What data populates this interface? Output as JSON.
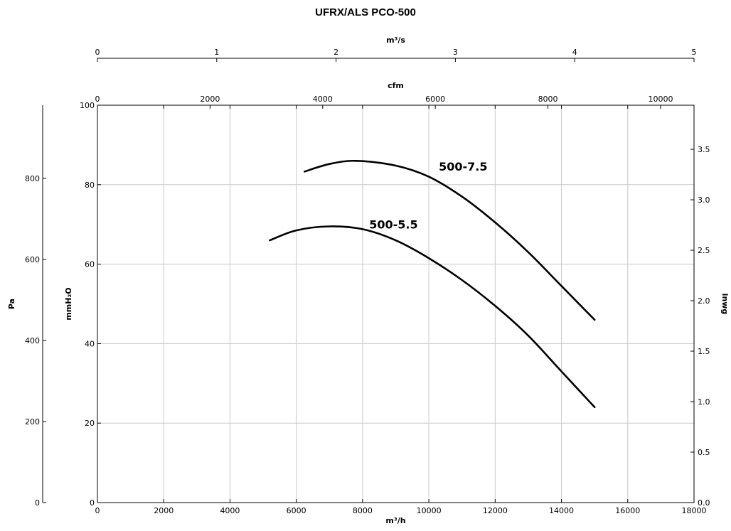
{
  "chart_data": {
    "type": "line",
    "title": "UFRX/ALS PCO-500",
    "xlabel": "m³/h",
    "ylabel": "mmH₂O",
    "xlim": [
      0,
      18000
    ],
    "ylim": [
      0,
      100
    ],
    "x_ticks": [
      0,
      2000,
      4000,
      6000,
      8000,
      10000,
      12000,
      14000,
      16000,
      18000
    ],
    "y_ticks": [
      0,
      20,
      40,
      60,
      80,
      100
    ],
    "grid": true,
    "secondary_axes": {
      "top_m3s": {
        "label": "m³/s",
        "range": [
          0,
          5
        ],
        "ticks": [
          0,
          1,
          2,
          3,
          4,
          5
        ]
      },
      "top_cfm": {
        "label": "cfm",
        "range": [
          0,
          10594
        ],
        "ticks": [
          0,
          2000,
          4000,
          6000,
          8000,
          10000
        ]
      },
      "left_pa": {
        "label": "Pa",
        "range": [
          0,
          980.7
        ],
        "ticks": [
          0,
          200,
          400,
          600,
          800
        ]
      },
      "right_inwg": {
        "label": "inwg",
        "range": [
          0,
          3.937
        ],
        "ticks": [
          0.0,
          0.5,
          1.0,
          1.5,
          2.0,
          2.5,
          3.0,
          3.5
        ]
      }
    },
    "series": [
      {
        "name": "500-7.5",
        "x": [
          6250,
          7000,
          7800,
          9000,
          10000,
          11000,
          12000,
          13000,
          14000,
          15000
        ],
        "y": [
          83.3,
          85.2,
          86.0,
          84.8,
          82.0,
          77.0,
          70.5,
          63.0,
          54.5,
          46.0
        ]
      },
      {
        "name": "500-5.5",
        "x": [
          5200,
          6000,
          7000,
          8000,
          9000,
          10000,
          11000,
          12000,
          13000,
          14000,
          15000
        ],
        "y": [
          66.0,
          68.5,
          69.5,
          68.8,
          66.0,
          61.5,
          56.0,
          49.5,
          42.0,
          33.0,
          24.0
        ]
      }
    ]
  }
}
